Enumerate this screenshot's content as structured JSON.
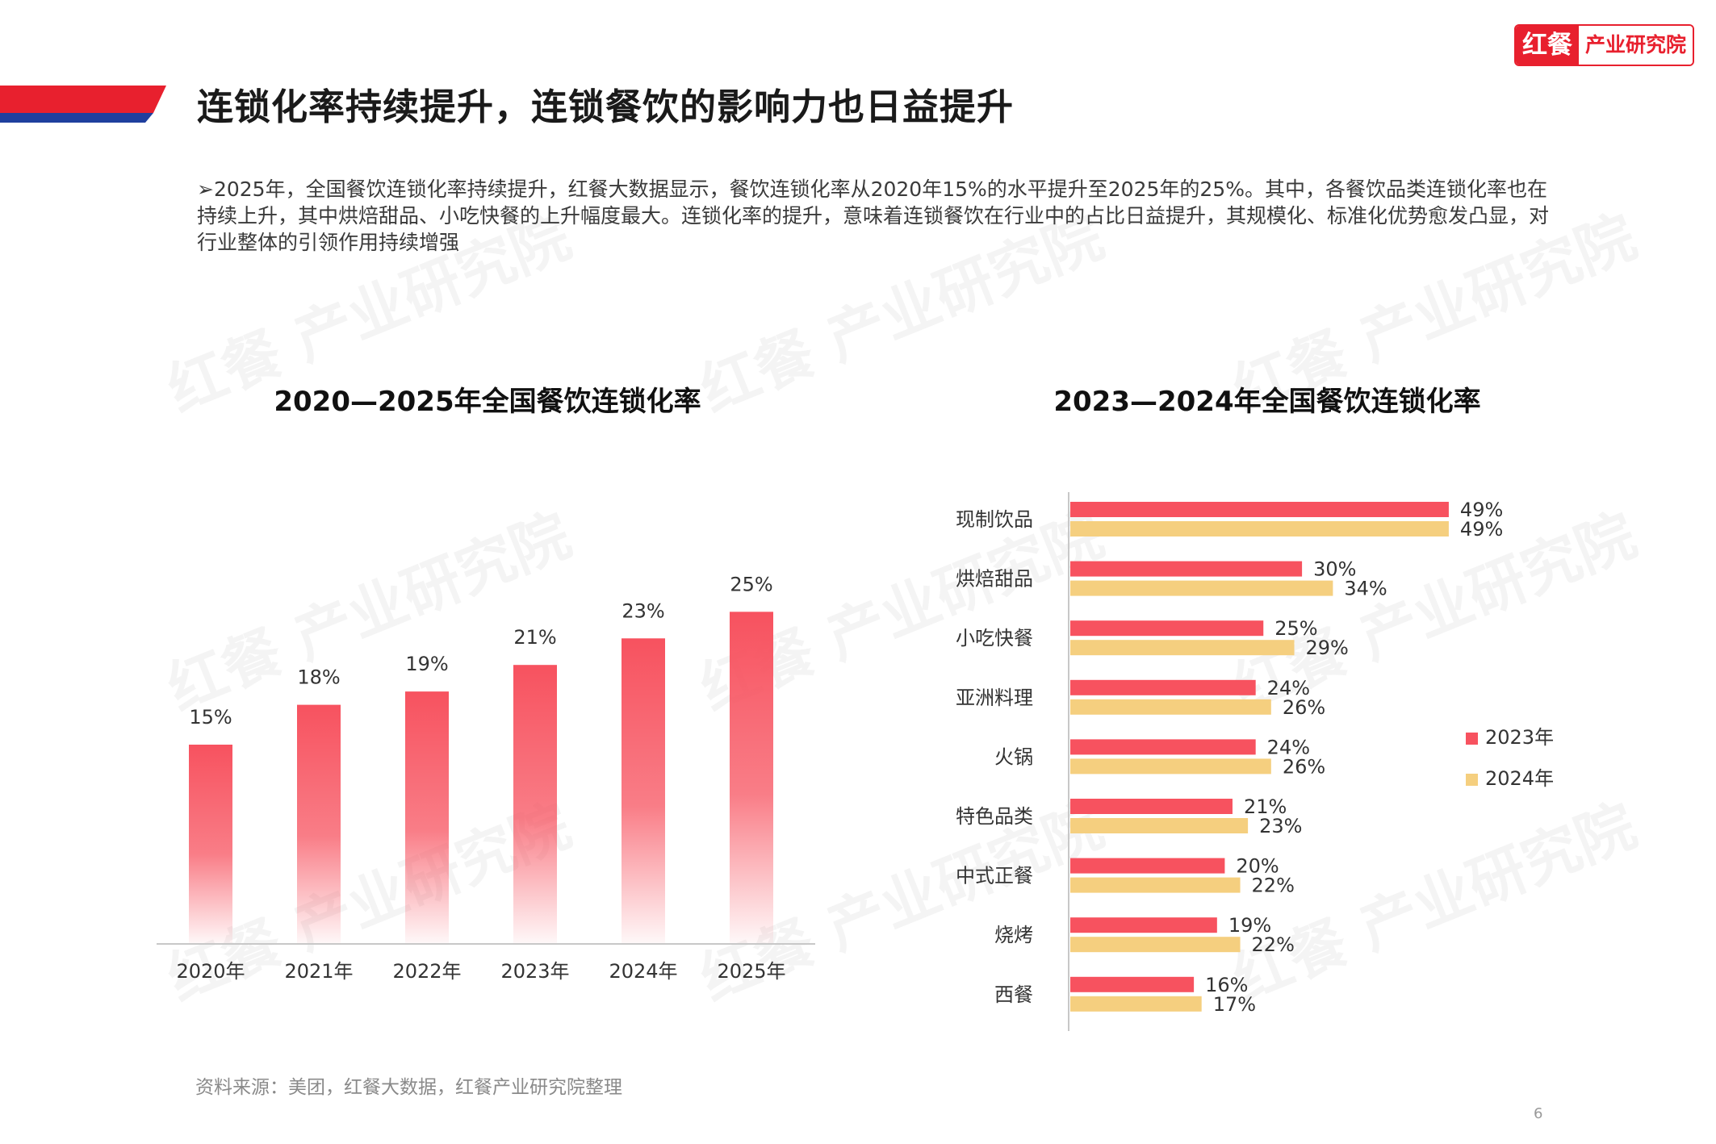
{
  "logo": {
    "mark": "红餐",
    "text": "产业研究院"
  },
  "header": {
    "title": "连锁化率持续提升，连锁餐饮的影响力也日益提升"
  },
  "intro": {
    "bullet": "➢",
    "text": "2025年，全国餐饮连锁化率持续提升，红餐大数据显示，餐饮连锁化率从2020年15%的水平提升至2025年的25%。其中，各餐饮品类连锁化率也在持续上升，其中烘焙甜品、小吃快餐的上升幅度最大。连锁化率的提升，意味着连锁餐饮在行业中的占比日益提升，其规模化、标准化优势愈发凸显，对行业整体的引领作用持续增强"
  },
  "watermark_text": "红餐 产业研究院",
  "colors": {
    "accent_red": "#e8202e",
    "accent_blue": "#1f3f9e",
    "bar_red": "#f7525f",
    "bar_yellow": "#f5cf7f"
  },
  "chart_data": [
    {
      "type": "bar",
      "title": "2020—2025年全国餐饮连锁化率",
      "categories": [
        "2020年",
        "2021年",
        "2022年",
        "2023年",
        "2024年",
        "2025年"
      ],
      "values": [
        15,
        18,
        19,
        21,
        23,
        25
      ],
      "value_labels": [
        "15%",
        "18%",
        "19%",
        "21%",
        "23%",
        "25%"
      ],
      "unit": "%",
      "ylim": [
        0,
        30
      ],
      "xlabel": "",
      "ylabel": "",
      "grid": false
    },
    {
      "type": "bar",
      "orientation": "horizontal",
      "title": "2023—2024年全国餐饮连锁化率",
      "categories": [
        "现制饮品",
        "烘焙甜品",
        "小吃快餐",
        "亚洲料理",
        "火锅",
        "特色品类",
        "中式正餐",
        "烧烤",
        "西餐"
      ],
      "series": [
        {
          "name": "2023年",
          "values": [
            49,
            30,
            25,
            24,
            24,
            21,
            20,
            19,
            16
          ],
          "labels": [
            "49%",
            "30%",
            "25%",
            "24%",
            "24%",
            "21%",
            "20%",
            "19%",
            "16%"
          ]
        },
        {
          "name": "2024年",
          "values": [
            49,
            34,
            29,
            26,
            26,
            23,
            22,
            22,
            17
          ],
          "labels": [
            "49%",
            "34%",
            "29%",
            "26%",
            "26%",
            "23%",
            "22%",
            "22%",
            "17%"
          ]
        }
      ],
      "xlim": [
        0,
        60
      ],
      "legend": "right",
      "grid": false
    }
  ],
  "source": "资料来源：美团，红餐大数据，红餐产业研究院整理",
  "page_number": "6"
}
